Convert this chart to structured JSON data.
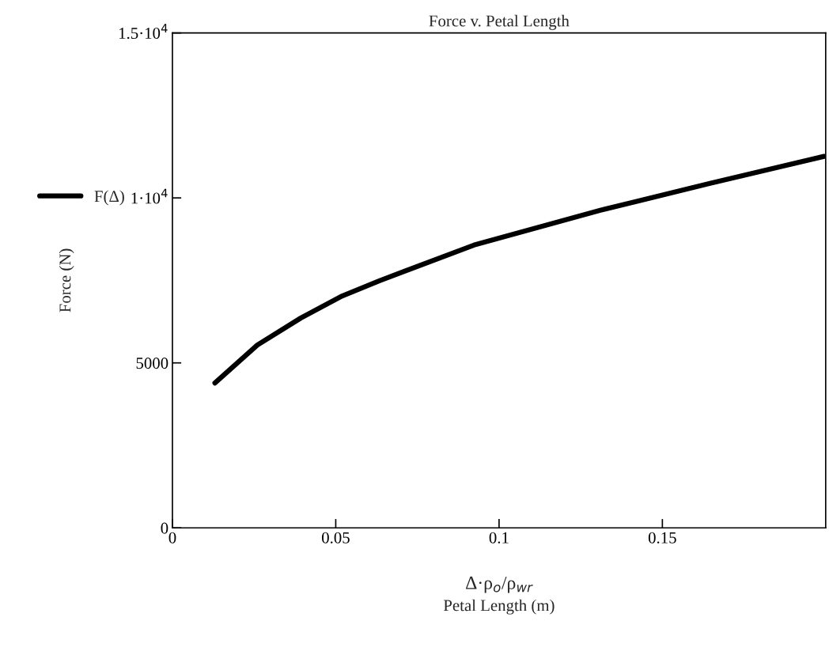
{
  "chart_data": {
    "type": "line",
    "title": "Force v. Petal Length",
    "xlabel": "Petal Length (m)",
    "ylabel": "Force (N)",
    "annotations": [
      "Δ·ρ$_{o}$/ρ$_{wr}$"
    ],
    "x": [
      0.013,
      0.026,
      0.0393,
      0.052,
      0.0634,
      0.0923,
      0.1308,
      0.1646,
      0.1995
    ],
    "series": [
      {
        "name": "F(Δ)",
        "color": "#000000",
        "values": [
          4390,
          5540,
          6360,
          7030,
          7490,
          8570,
          9620,
          10440,
          11260
        ]
      }
    ],
    "xlim": [
      0,
      0.2
    ],
    "xticks": [
      0,
      0.05,
      0.1,
      0.15
    ],
    "ylim": [
      0,
      15000
    ],
    "yticks": [
      0,
      5000,
      {
        "value": 10000,
        "label": "1·10$^{4}$"
      },
      {
        "value": 15000,
        "label": "1.5·10$^{4}$"
      }
    ],
    "grid": false,
    "legend": "left",
    "marker": "none",
    "line_style": "solid"
  }
}
